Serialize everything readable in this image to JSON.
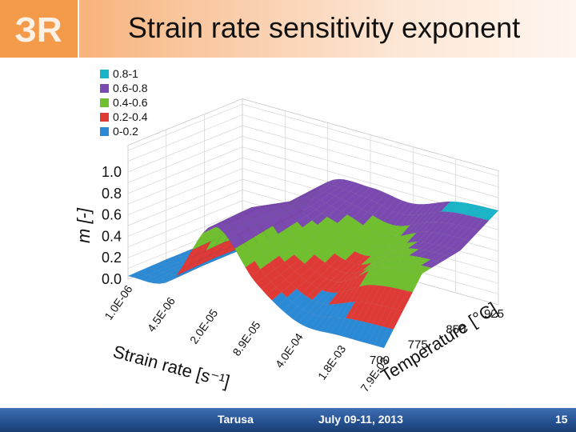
{
  "header": {
    "title": "Strain rate sensitivity exponent",
    "logo_text": "ЗR"
  },
  "footer": {
    "location": "Tarusa",
    "date": "July 09-11, 2013",
    "page_number": "15"
  },
  "colors": {
    "header_accent": "#f39b4a",
    "footer_blue": "#24508f"
  },
  "chart_data": {
    "type": "surface3d",
    "title": "Strain rate sensitivity exponent",
    "xlabel": "Strain rate [s⁻¹]",
    "ylabel": "Temperature [°C]",
    "zlabel": "m [-]",
    "strain_rate_ticks": [
      "1.0E-06",
      "4.5E-06",
      "2.0E-05",
      "8.9E-05",
      "4.0E-04",
      "1.8E-03",
      "7.9E-03"
    ],
    "temperature_ticks": [
      "700",
      "775",
      "850",
      "925"
    ],
    "temperature_values": [
      700,
      775,
      850,
      925
    ],
    "z_ticks": [
      "0.0",
      "0.2",
      "0.4",
      "0.6",
      "0.8",
      "1.0"
    ],
    "zlim": [
      0,
      1.0
    ],
    "legend": [
      {
        "label": "0.8-1",
        "color": "#19b4c8"
      },
      {
        "label": "0.6-0.8",
        "color": "#7a4ab0"
      },
      {
        "label": "0.4-0.6",
        "color": "#6fbf2e"
      },
      {
        "label": "0.2-0.4",
        "color": "#e03a36"
      },
      {
        "label": "0-0.2",
        "color": "#2b8ad6"
      }
    ],
    "m_values": [
      [
        0.03,
        0.1,
        0.72,
        0.3,
        0.04,
        0.03,
        0.03
      ],
      [
        0.04,
        0.12,
        0.75,
        0.42,
        0.28,
        0.52,
        0.58
      ],
      [
        0.04,
        0.12,
        0.66,
        0.6,
        0.46,
        0.62,
        0.65
      ],
      [
        0.05,
        0.14,
        0.7,
        0.76,
        0.72,
        0.85,
        0.88
      ]
    ]
  }
}
